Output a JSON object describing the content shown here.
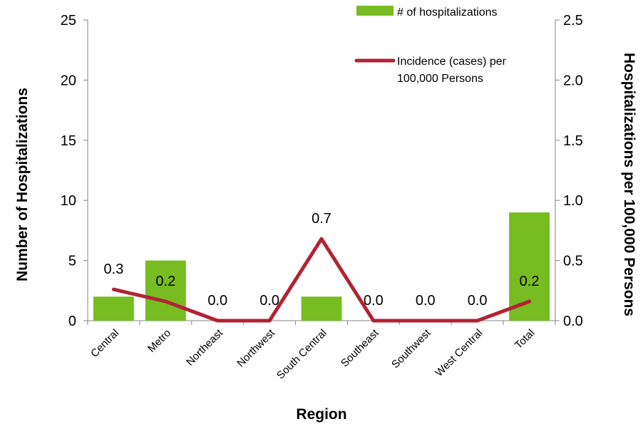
{
  "chart_data": {
    "type": "bar",
    "categories": [
      "Central",
      "Metro",
      "Northeast",
      "Northwest",
      "South Central",
      "Southeast",
      "Southwest",
      "West Central",
      "Total"
    ],
    "xlabel": "Region",
    "ylabel": "Number of Hospitalizations",
    "ylabel_right": "Hospitalizations per 100,000 Persons",
    "ylim": [
      0,
      25
    ],
    "ylim_right": [
      0,
      2.5
    ],
    "yticks": [
      "0",
      "5",
      "10",
      "15",
      "20",
      "25"
    ],
    "yticks_right": [
      "0.0",
      "0.5",
      "1.0",
      "1.5",
      "2.0",
      "2.5"
    ],
    "grid": false,
    "legend_position": "top-right",
    "series": [
      {
        "name": "# of hospitalizations",
        "type": "bar",
        "axis": "left",
        "color": "#77bc20",
        "values": [
          2,
          5,
          0,
          0,
          2,
          0,
          0,
          0,
          9
        ]
      },
      {
        "name": "Incidence (cases) per 100,000 Persons",
        "type": "line",
        "axis": "right",
        "color": "#b22234",
        "values": [
          0.26,
          0.16,
          0.0,
          0.0,
          0.68,
          0.0,
          0.0,
          0.0,
          0.16
        ],
        "data_labels": [
          "0.3",
          "0.2",
          "0.0",
          "0.0",
          "0.7",
          "0.0",
          "0.0",
          "0.0",
          "0.2"
        ]
      }
    ]
  }
}
